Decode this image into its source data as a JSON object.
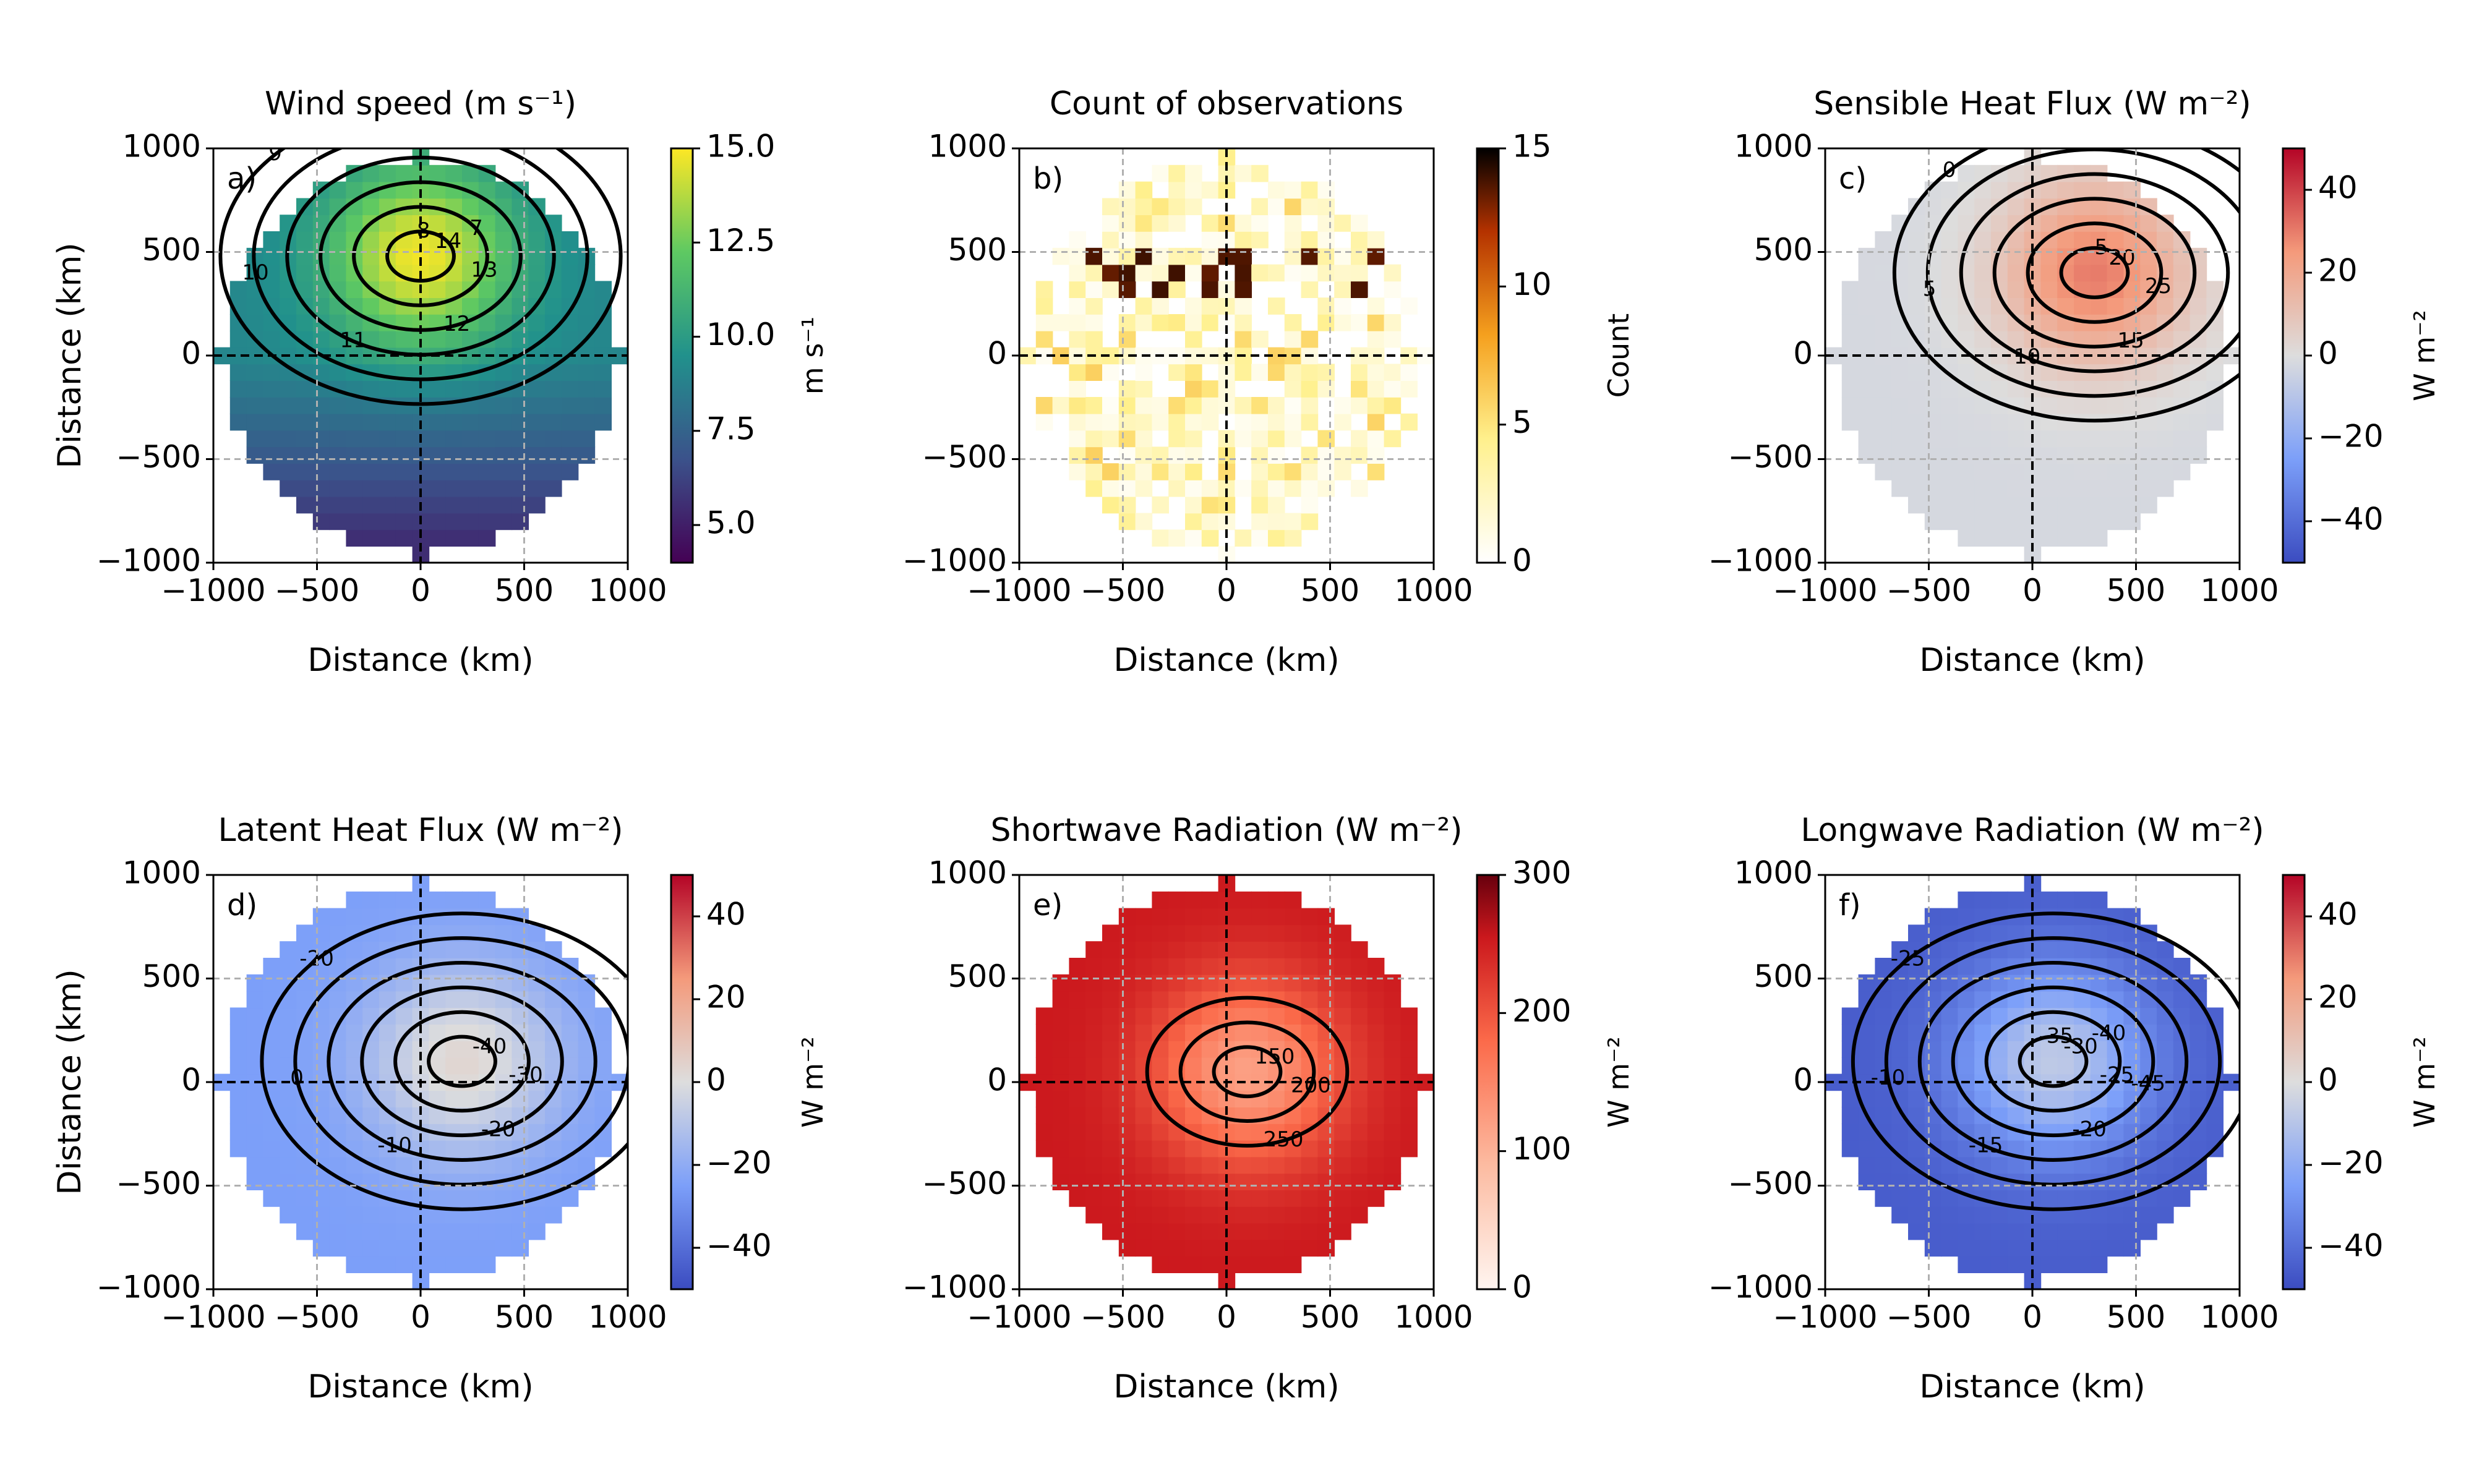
{
  "chart_data": [
    {
      "type": "heatmap",
      "panel": "a)",
      "title": "Wind speed (m s⁻¹)",
      "xlabel": "Distance (km)",
      "ylabel": "Distance (km)",
      "xlim": [
        -1000,
        1000
      ],
      "ylim": [
        -1000,
        1000
      ],
      "xticks": [
        "−1000",
        "−500",
        "0",
        "500",
        "1000"
      ],
      "yticks": [
        "−1000",
        "−500",
        "0",
        "500",
        "1000"
      ],
      "colorbar": {
        "label": "m s⁻¹",
        "range": [
          4,
          15
        ],
        "ticks": [
          "5.0",
          "7.5",
          "10.0",
          "12.5",
          "15.0"
        ],
        "colormap": "viridis"
      },
      "contour_labels": [
        "14",
        "13",
        "12",
        "11",
        "10",
        "9",
        "8",
        "7"
      ],
      "field": {
        "center": [
          0,
          480
        ],
        "peak": 14.8,
        "baseline": 9,
        "south": 5.5
      }
    },
    {
      "type": "heatmap",
      "panel": "b)",
      "title": "Count of observations",
      "xlabel": "Distance (km)",
      "ylabel": "",
      "xlim": [
        -1000,
        1000
      ],
      "ylim": [
        -1000,
        1000
      ],
      "xticks": [
        "−1000",
        "−500",
        "0",
        "500",
        "1000"
      ],
      "yticks": [
        "−1000",
        "−500",
        "0",
        "500",
        "1000"
      ],
      "colorbar": {
        "label": "Count",
        "range": [
          0,
          15
        ],
        "ticks": [
          "0",
          "5",
          "10",
          "15"
        ],
        "colormap": "afmhot_r"
      },
      "contour_labels": []
    },
    {
      "type": "heatmap",
      "panel": "c)",
      "title": "Sensible Heat Flux (W m⁻²)",
      "xlabel": "Distance (km)",
      "ylabel": "",
      "xlim": [
        -1000,
        1000
      ],
      "ylim": [
        -1000,
        1000
      ],
      "xticks": [
        "−1000",
        "−500",
        "0",
        "500",
        "1000"
      ],
      "yticks": [
        "−1000",
        "−500",
        "0",
        "500",
        "1000"
      ],
      "colorbar": {
        "label": "W m⁻²",
        "range": [
          -50,
          50
        ],
        "ticks": [
          "40",
          "20",
          "0",
          "−20",
          "−40"
        ],
        "colormap": "coolwarm"
      },
      "contour_labels": [
        "20",
        "25",
        "15",
        "10",
        "5",
        "0",
        "-5"
      ],
      "field": {
        "center": [
          300,
          400
        ],
        "peak": 30,
        "baseline": -2
      }
    },
    {
      "type": "heatmap",
      "panel": "d)",
      "title": "Latent Heat Flux (W m⁻²)",
      "xlabel": "Distance (km)",
      "ylabel": "Distance (km)",
      "xlim": [
        -1000,
        1000
      ],
      "ylim": [
        -1000,
        1000
      ],
      "xticks": [
        "−1000",
        "−500",
        "0",
        "500",
        "1000"
      ],
      "yticks": [
        "−1000",
        "−500",
        "0",
        "500",
        "1000"
      ],
      "colorbar": {
        "label": "W m⁻²",
        "range": [
          -50,
          50
        ],
        "ticks": [
          "40",
          "20",
          "0",
          "−20",
          "−40"
        ],
        "colormap": "coolwarm"
      },
      "contour_labels": [
        "-40",
        "-30",
        "-20",
        "-10",
        "0",
        "-20"
      ],
      "field": {
        "center": [
          200,
          100
        ],
        "peak": 3,
        "baseline": -25
      }
    },
    {
      "type": "heatmap",
      "panel": "e)",
      "title": "Shortwave Radiation (W m⁻²)",
      "xlabel": "Distance (km)",
      "ylabel": "",
      "xlim": [
        -1000,
        1000
      ],
      "ylim": [
        -1000,
        1000
      ],
      "xticks": [
        "−1000",
        "−500",
        "0",
        "500",
        "1000"
      ],
      "yticks": [
        "−1000",
        "−500",
        "0",
        "500",
        "1000"
      ],
      "colorbar": {
        "label": "W m⁻²",
        "range": [
          0,
          300
        ],
        "ticks": [
          "300",
          "200",
          "100",
          "0"
        ],
        "colormap": "Reds"
      },
      "contour_labels": [
        "150",
        "200",
        "250"
      ],
      "field": {
        "center": [
          100,
          50
        ],
        "peak": 120,
        "baseline": 255
      }
    },
    {
      "type": "heatmap",
      "panel": "f)",
      "title": "Longwave Radiation (W m⁻²)",
      "xlabel": "Distance (km)",
      "ylabel": "",
      "xlim": [
        -1000,
        1000
      ],
      "ylim": [
        -1000,
        1000
      ],
      "xticks": [
        "−1000",
        "−500",
        "0",
        "500",
        "1000"
      ],
      "yticks": [
        "−1000",
        "−500",
        "0",
        "500",
        "1000"
      ],
      "colorbar": {
        "label": "W m⁻²",
        "range": [
          -50,
          50
        ],
        "ticks": [
          "40",
          "20",
          "0",
          "−20",
          "−40"
        ],
        "colormap": "coolwarm"
      },
      "contour_labels": [
        "-30",
        "-25",
        "-20",
        "-15",
        "-10",
        "-25",
        "-35",
        "-40",
        "-45"
      ],
      "field": {
        "center": [
          100,
          100
        ],
        "peak": -8,
        "baseline": -45
      }
    }
  ]
}
